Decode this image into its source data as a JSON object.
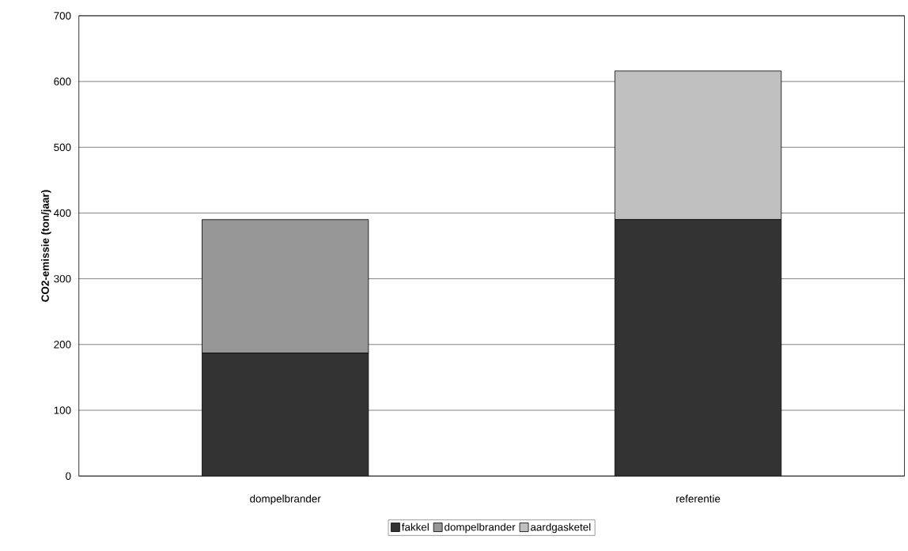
{
  "chart_data": {
    "type": "bar",
    "stacked": true,
    "ylabel": "CO2-emissie (ton/jaar)",
    "categories": [
      "dompelbrander",
      "referentie"
    ],
    "series": [
      {
        "name": "fakkel",
        "color": "#333333",
        "values": [
          187,
          390
        ]
      },
      {
        "name": "dompelbrander",
        "color": "#969696",
        "values": [
          203,
          0
        ]
      },
      {
        "name": "aardgasketel",
        "color": "#c0c0c0",
        "values": [
          0,
          226
        ]
      }
    ],
    "ylim": [
      0,
      700
    ],
    "yticks": [
      0,
      100,
      200,
      300,
      400,
      500,
      600,
      700
    ],
    "grid": "y",
    "legend": "bottom"
  }
}
